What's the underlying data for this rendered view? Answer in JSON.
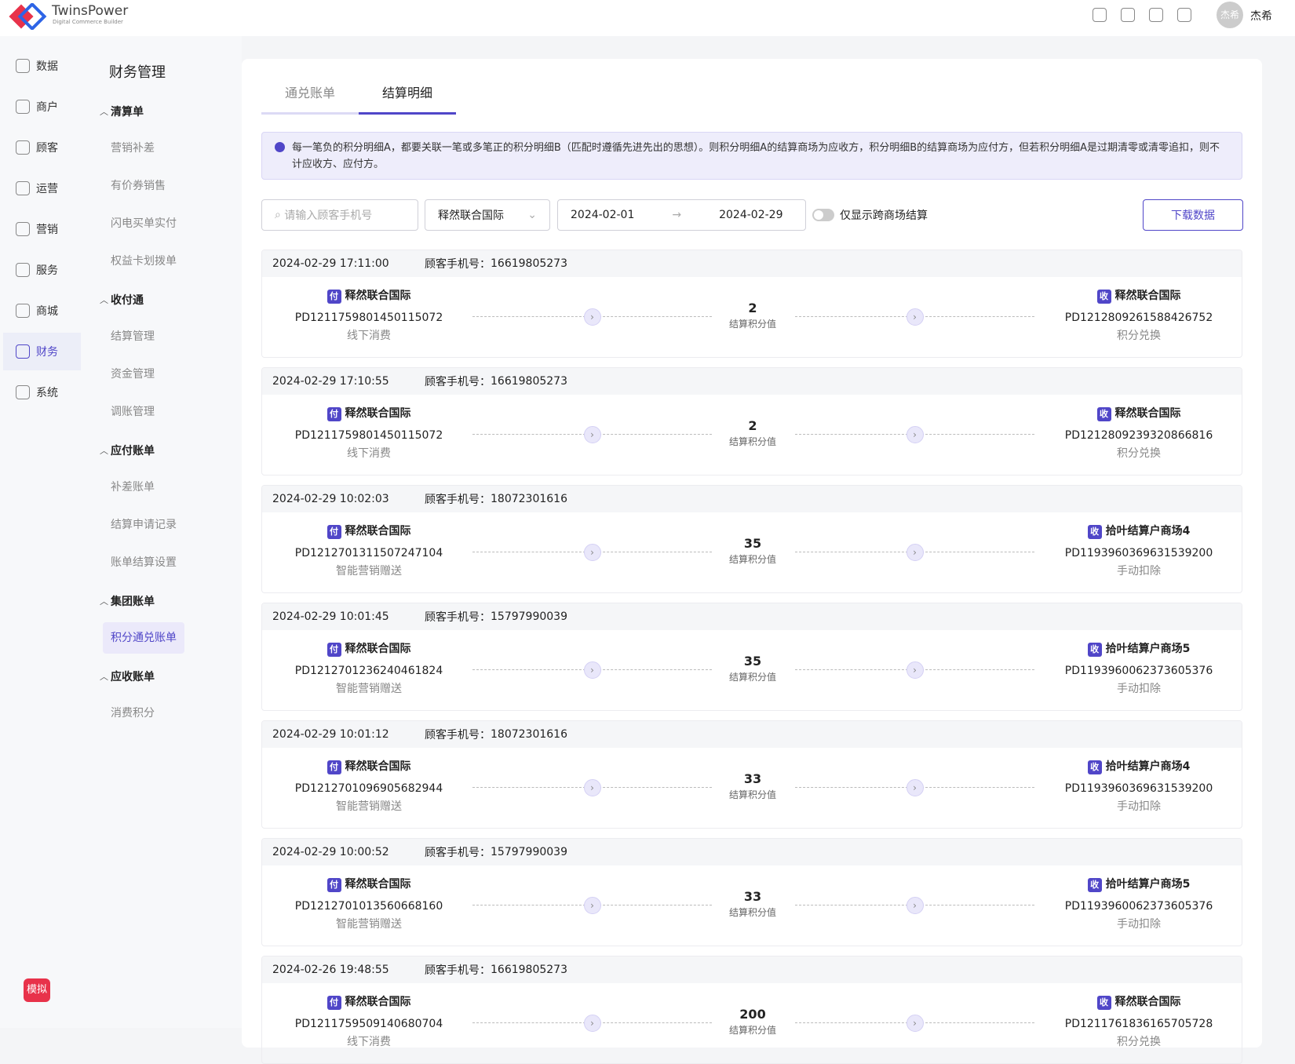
{
  "header": {
    "brand": "TwinsPower",
    "brand_sub": "Digital Commerce Builder",
    "avatar": "杰希",
    "user": "杰希"
  },
  "nav": {
    "items": [
      "数据",
      "商户",
      "顾客",
      "运营",
      "营销",
      "服务",
      "商城",
      "财务",
      "系统"
    ],
    "active": 7,
    "badge": "模拟"
  },
  "submenu": {
    "title": "财务管理",
    "active": "积分通兑账单",
    "groups": [
      {
        "title": "清算单",
        "items": [
          "营销补差",
          "有价券销售",
          "闪电买单实付",
          "权益卡划拨单"
        ]
      },
      {
        "title": "收付通",
        "items": [
          "结算管理",
          "资金管理",
          "调账管理"
        ]
      },
      {
        "title": "应付账单",
        "items": [
          "补差账单",
          "结算申请记录",
          "账单结算设置"
        ]
      },
      {
        "title": "集团账单",
        "items": [
          "积分通兑账单"
        ]
      },
      {
        "title": "应收账单",
        "items": [
          "消费积分"
        ]
      }
    ]
  },
  "tabs": {
    "items": [
      "通兑账单",
      "结算明细"
    ],
    "active": 1
  },
  "notice": "每一笔负的积分明细A，都要关联一笔或多笔正的积分明细B（匹配时遵循先进先出的思想）。则积分明细A的结算商场为应收方，积分明细B的结算商场为应付方，但若积分明细A是过期清零或清零追扣，则不计应收方、应付方。",
  "filters": {
    "search_placeholder": "请输入顾客手机号",
    "select": "释然联合国际",
    "date_start": "2024-02-01",
    "date_end": "2024-02-29",
    "toggle_label": "仅显示跨商场结算",
    "download": "下载数据"
  },
  "labels": {
    "phone": "顾客手机号：",
    "points": "结算积分值",
    "pay_tag": "付",
    "receive_tag": "收"
  },
  "records": [
    {
      "time": "2024-02-29 17:11:00",
      "phone": "16619805273",
      "pay": {
        "merchant": "释然联合国际",
        "order": "PD1211759801450115072",
        "type": "线下消费"
      },
      "points": 2,
      "receive": {
        "merchant": "释然联合国际",
        "order": "PD1212809261588426752",
        "type": "积分兑换"
      }
    },
    {
      "time": "2024-02-29 17:10:55",
      "phone": "16619805273",
      "pay": {
        "merchant": "释然联合国际",
        "order": "PD1211759801450115072",
        "type": "线下消费"
      },
      "points": 2,
      "receive": {
        "merchant": "释然联合国际",
        "order": "PD1212809239320866816",
        "type": "积分兑换"
      }
    },
    {
      "time": "2024-02-29 10:02:03",
      "phone": "18072301616",
      "pay": {
        "merchant": "释然联合国际",
        "order": "PD1212701311507247104",
        "type": "智能营销赠送"
      },
      "points": 35,
      "receive": {
        "merchant": "拾叶结算户商场4",
        "order": "PD1193960369631539200",
        "type": "手动扣除"
      }
    },
    {
      "time": "2024-02-29 10:01:45",
      "phone": "15797990039",
      "pay": {
        "merchant": "释然联合国际",
        "order": "PD1212701236240461824",
        "type": "智能营销赠送"
      },
      "points": 35,
      "receive": {
        "merchant": "拾叶结算户商场5",
        "order": "PD1193960062373605376",
        "type": "手动扣除"
      }
    },
    {
      "time": "2024-02-29 10:01:12",
      "phone": "18072301616",
      "pay": {
        "merchant": "释然联合国际",
        "order": "PD1212701096905682944",
        "type": "智能营销赠送"
      },
      "points": 33,
      "receive": {
        "merchant": "拾叶结算户商场4",
        "order": "PD1193960369631539200",
        "type": "手动扣除"
      }
    },
    {
      "time": "2024-02-29 10:00:52",
      "phone": "15797990039",
      "pay": {
        "merchant": "释然联合国际",
        "order": "PD1212701013560668160",
        "type": "智能营销赠送"
      },
      "points": 33,
      "receive": {
        "merchant": "拾叶结算户商场5",
        "order": "PD1193960062373605376",
        "type": "手动扣除"
      }
    },
    {
      "time": "2024-02-26 19:48:55",
      "phone": "16619805273",
      "pay": {
        "merchant": "释然联合国际",
        "order": "PD1211759509140680704",
        "type": "线下消费"
      },
      "points": 200,
      "receive": {
        "merchant": "释然联合国际",
        "order": "PD1211761836165705728",
        "type": "积分兑换"
      }
    }
  ]
}
